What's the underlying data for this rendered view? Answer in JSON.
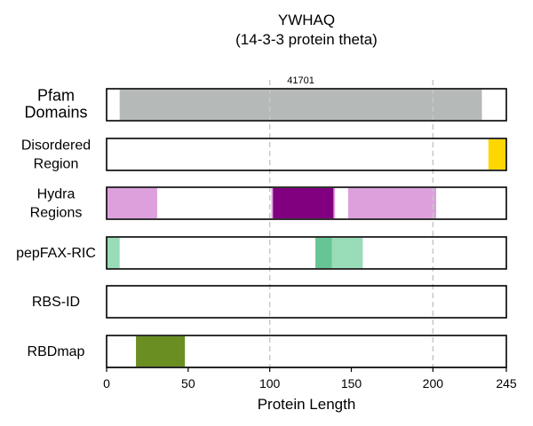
{
  "chart_data": {
    "type": "bar",
    "title": "YWHAQ",
    "subtitle": "(14-3-3 protein theta)",
    "xlabel": "Protein Length",
    "xlim": [
      0,
      245
    ],
    "xticks": [
      0,
      50,
      100,
      150,
      200,
      245
    ],
    "vlines": [
      100,
      200
    ],
    "grid": false,
    "tracks": [
      {
        "label": [
          "Pfam",
          "Domains"
        ],
        "segments": [
          {
            "start": 8,
            "end": 230,
            "color": "#b5b9b7",
            "label": "41701"
          }
        ]
      },
      {
        "label": [
          "Disordered",
          "Region"
        ],
        "segments": [
          {
            "start": 234,
            "end": 245,
            "color": "#ffd700"
          }
        ]
      },
      {
        "label": [
          "Hydra",
          "Regions"
        ],
        "segments": [
          {
            "start": 0,
            "end": 31,
            "color": "#dda0dd"
          },
          {
            "start": 101,
            "end": 140,
            "color": "#dda0dd"
          },
          {
            "start": 102,
            "end": 139,
            "color": "#800080"
          },
          {
            "start": 148,
            "end": 202,
            "color": "#dda0dd"
          }
        ]
      },
      {
        "label": [
          "pepFAX-RIC"
        ],
        "segments": [
          {
            "start": 0,
            "end": 8,
            "color": "#98dcb8"
          },
          {
            "start": 128,
            "end": 157,
            "color": "#98dcb8"
          },
          {
            "start": 128,
            "end": 138,
            "color": "#66c594"
          }
        ]
      },
      {
        "label": [
          "RBS-ID"
        ],
        "segments": []
      },
      {
        "label": [
          "RBDmap"
        ],
        "segments": [
          {
            "start": 18,
            "end": 48,
            "color": "#6b8e23"
          }
        ]
      }
    ]
  }
}
